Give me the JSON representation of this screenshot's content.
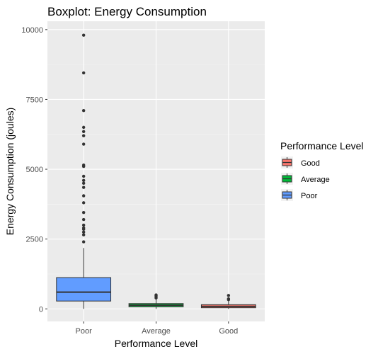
{
  "chart_data": {
    "type": "boxplot",
    "title": "Boxplot: Energy Consumption",
    "xlabel": "Performance Level",
    "ylabel": "Energy Consumption (joules)",
    "ylim": [
      -450,
      10300
    ],
    "y_ticks": [
      0,
      2500,
      5000,
      7500,
      10000
    ],
    "y_tick_labels": [
      "0",
      "2500",
      "5000",
      "7500",
      "10000"
    ],
    "categories": [
      "Poor",
      "Average",
      "Good"
    ],
    "grid": true,
    "legend": {
      "title": "Performance Level",
      "position": "right",
      "entries": [
        "Good",
        "Average",
        "Poor"
      ]
    },
    "colors": {
      "Poor": "#619CFF",
      "Average": "#00BA38",
      "Good": "#F8766D"
    },
    "boxes": [
      {
        "name": "Poor",
        "whisker_low": 0,
        "q1": 280,
        "median": 600,
        "q3": 1120,
        "whisker_high": 2180,
        "outliers": [
          2400,
          2650,
          2750,
          2850,
          2900,
          3000,
          3200,
          3450,
          3800,
          4050,
          4350,
          4500,
          4600,
          4750,
          5100,
          5150,
          5900,
          6200,
          6350,
          6500,
          7100,
          8450,
          9800
        ]
      },
      {
        "name": "Average",
        "whisker_low": 0,
        "q1": 75,
        "median": 130,
        "q3": 190,
        "whisker_high": 340,
        "outliers": [
          390,
          430,
          470,
          500
        ]
      },
      {
        "name": "Good",
        "whisker_low": 0,
        "q1": 40,
        "median": 90,
        "q3": 150,
        "whisker_high": 290,
        "outliers": [
          330,
          360,
          480
        ]
      }
    ]
  }
}
